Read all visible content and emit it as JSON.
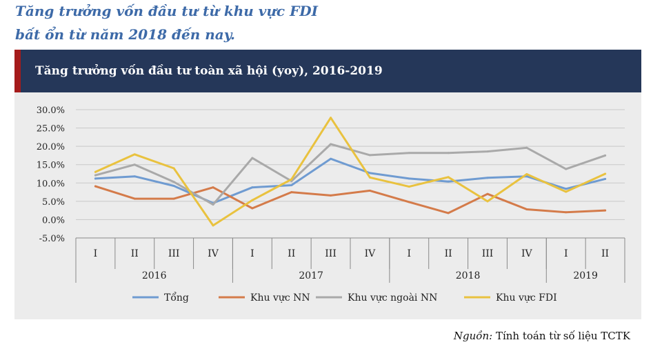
{
  "headline": {
    "line1": "Tăng trưởng vốn đầu tư từ khu vực FDI",
    "line2": "bất ổn từ năm 2018 đến nay."
  },
  "source": {
    "label": "Nguồn:",
    "text": " Tính toán từ số liệu TCTK"
  },
  "colors": {
    "title_bar": "#253759",
    "title_accent": "#a51b1b",
    "headline": "#3d6aa8",
    "panel_bg": "#ececec"
  },
  "chart_data": {
    "type": "line",
    "title": "Tăng trưởng vốn đầu tư toàn xã hội (yoy), 2016-2019",
    "quarters": [
      "I",
      "II",
      "III",
      "IV",
      "I",
      "II",
      "III",
      "IV",
      "I",
      "II",
      "III",
      "IV",
      "I",
      "II"
    ],
    "years": [
      {
        "label": "2016",
        "quarters": 4
      },
      {
        "label": "2017",
        "quarters": 4
      },
      {
        "label": "2018",
        "quarters": 4
      },
      {
        "label": "2019",
        "quarters": 2
      }
    ],
    "ylim": [
      -5,
      30
    ],
    "yticks": [
      "30.0%",
      "25.0%",
      "20.0%",
      "15.0%",
      "10.0%",
      "5.0%",
      "0.0%",
      "-5.0%"
    ],
    "yticks_values": [
      30,
      25,
      20,
      15,
      10,
      5,
      0,
      -5
    ],
    "grid": true,
    "legend_position": "bottom",
    "series": [
      {
        "name": "Tổng",
        "color": "#6f9bd1",
        "values": [
          11.2,
          11.8,
          9.2,
          4.5,
          8.8,
          9.4,
          16.6,
          12.7,
          11.2,
          10.4,
          11.4,
          11.8,
          8.4,
          11.1
        ]
      },
      {
        "name": "Khu vực NN",
        "color": "#d47b4a",
        "values": [
          9.1,
          5.7,
          5.7,
          8.8,
          3.1,
          7.5,
          6.6,
          7.9,
          4.8,
          1.8,
          7.0,
          2.8,
          2.0,
          2.5
        ]
      },
      {
        "name": "Khu vực ngoài NN",
        "color": "#a9a9a9",
        "values": [
          12.1,
          15.0,
          10.3,
          4.1,
          16.8,
          10.5,
          20.6,
          17.6,
          18.2,
          18.2,
          18.6,
          19.6,
          13.8,
          17.5
        ]
      },
      {
        "name": "Khu vực FDI",
        "color": "#e9c23f",
        "values": [
          13.0,
          17.8,
          14.0,
          -1.6,
          5.3,
          11.0,
          27.8,
          11.5,
          9.0,
          11.6,
          5.0,
          12.4,
          7.6,
          12.5
        ]
      }
    ]
  }
}
